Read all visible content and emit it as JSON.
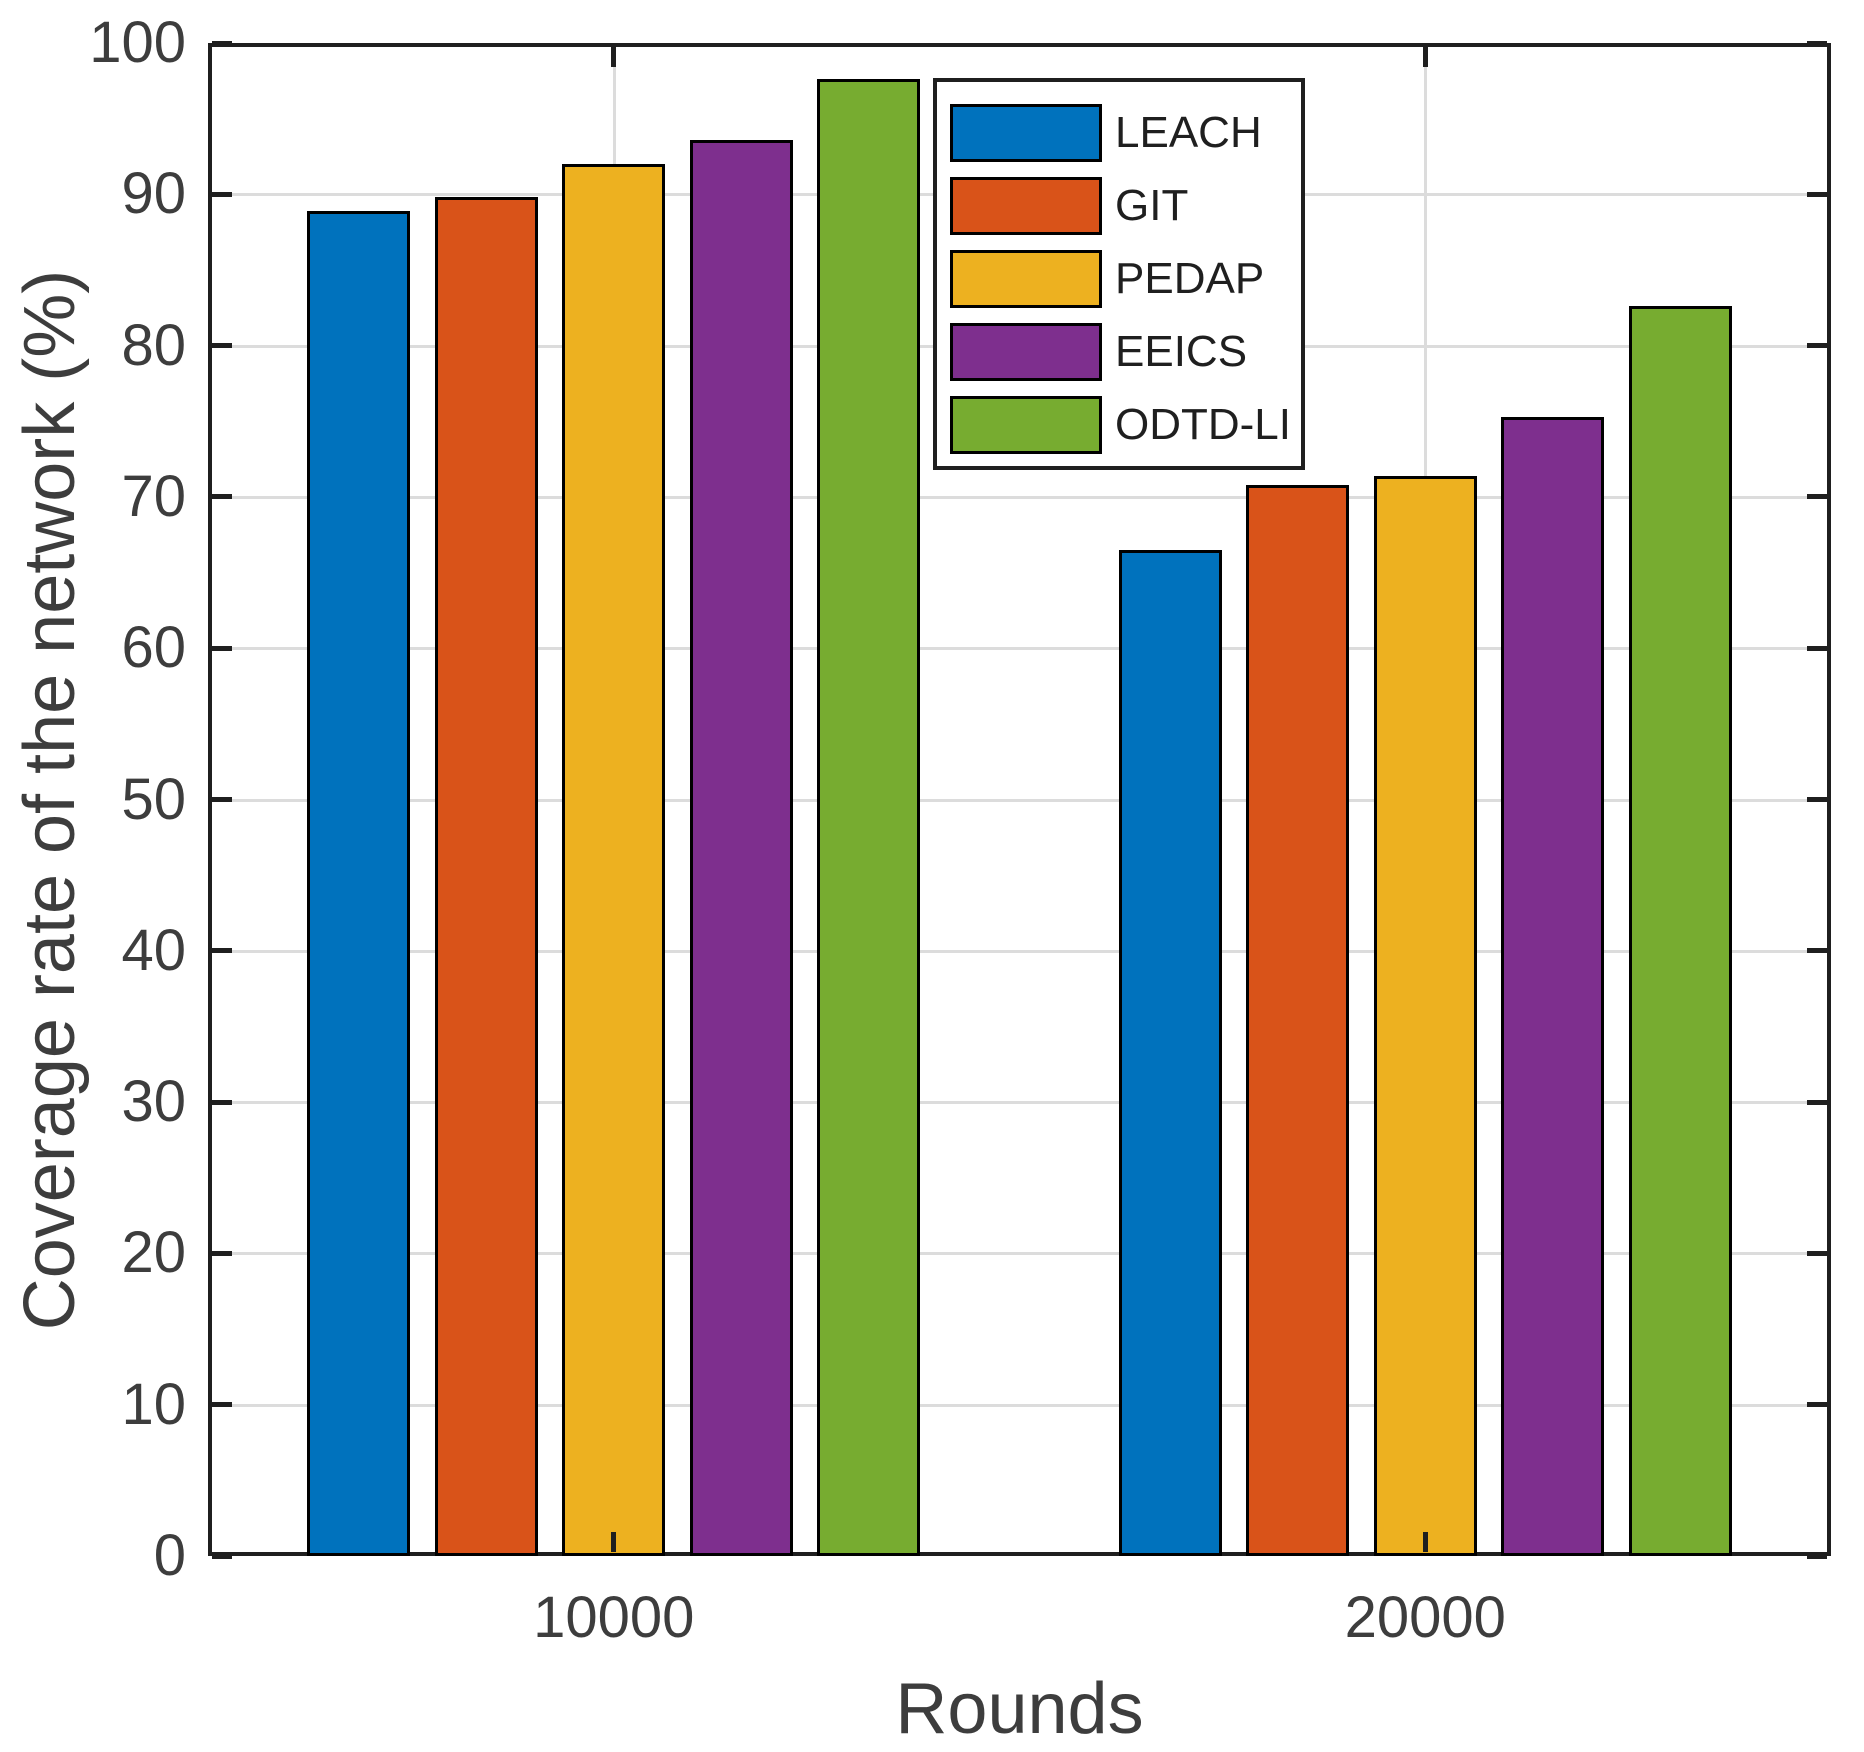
{
  "figure": {
    "kind": "matlab-style bar figure",
    "background": "#ffffff"
  },
  "chart_data": {
    "type": "bar",
    "title": "",
    "xlabel": "Rounds",
    "ylabel": "Coverage rate of the network (%)",
    "categories": [
      "10000",
      "20000"
    ],
    "series": [
      {
        "name": "LEACH",
        "color": "#0072BD",
        "values": [
          88.9,
          66.5
        ]
      },
      {
        "name": "GIT",
        "color": "#D95319",
        "values": [
          89.8,
          70.8
        ]
      },
      {
        "name": "PEDAP",
        "color": "#EDB120",
        "values": [
          92.0,
          71.4
        ]
      },
      {
        "name": "EEICS",
        "color": "#7E2F8E",
        "values": [
          93.6,
          75.3
        ]
      },
      {
        "name": "ODTD-LI",
        "color": "#77AC30",
        "values": [
          97.6,
          82.6
        ]
      }
    ],
    "ylim": [
      0,
      100
    ],
    "yticks": [
      0,
      10,
      20,
      30,
      40,
      50,
      60,
      70,
      80,
      90,
      100
    ],
    "grid": true,
    "legend_entries": [
      "LEACH",
      "GIT",
      "PEDAP",
      "EEICS",
      "ODTD-LI"
    ],
    "legend_position": "upper-left-inside",
    "bar_edge_color": "#000000",
    "axis_color": "#1f1f1f",
    "grid_color": "#dcdcdc"
  }
}
